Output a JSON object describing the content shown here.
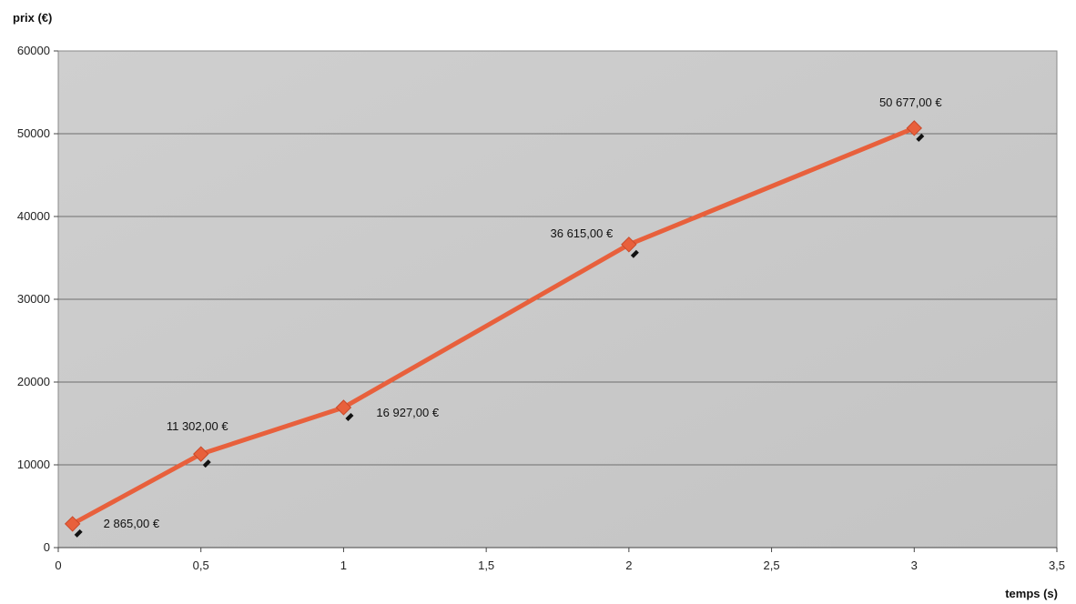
{
  "chart_data": {
    "type": "line",
    "title": "",
    "xlabel": "temps (s)",
    "ylabel": "prix (€)",
    "xlim": [
      0,
      3.5
    ],
    "ylim": [
      0,
      60000
    ],
    "x_ticks": [
      0,
      0.5,
      1,
      1.5,
      2,
      2.5,
      3,
      3.5
    ],
    "x_tick_labels": [
      "0",
      "0,5",
      "1",
      "1,5",
      "2",
      "2,5",
      "3",
      "3,5"
    ],
    "y_ticks": [
      0,
      10000,
      20000,
      30000,
      40000,
      50000,
      60000
    ],
    "y_tick_labels": [
      "0",
      "10000",
      "20000",
      "30000",
      "40000",
      "50000",
      "60000"
    ],
    "grid": true,
    "series": [
      {
        "x": [
          0.05,
          0.5,
          1,
          2,
          3
        ],
        "y": [
          2865,
          11302,
          16927,
          36615,
          50677
        ],
        "labels": [
          "2 865,00 €",
          "11 302,00 €",
          "16 927,00 €",
          "36 615,00 €",
          "50 677,00 €"
        ],
        "color": "#e8603c"
      }
    ],
    "plot_background": "#c9c9c9"
  }
}
